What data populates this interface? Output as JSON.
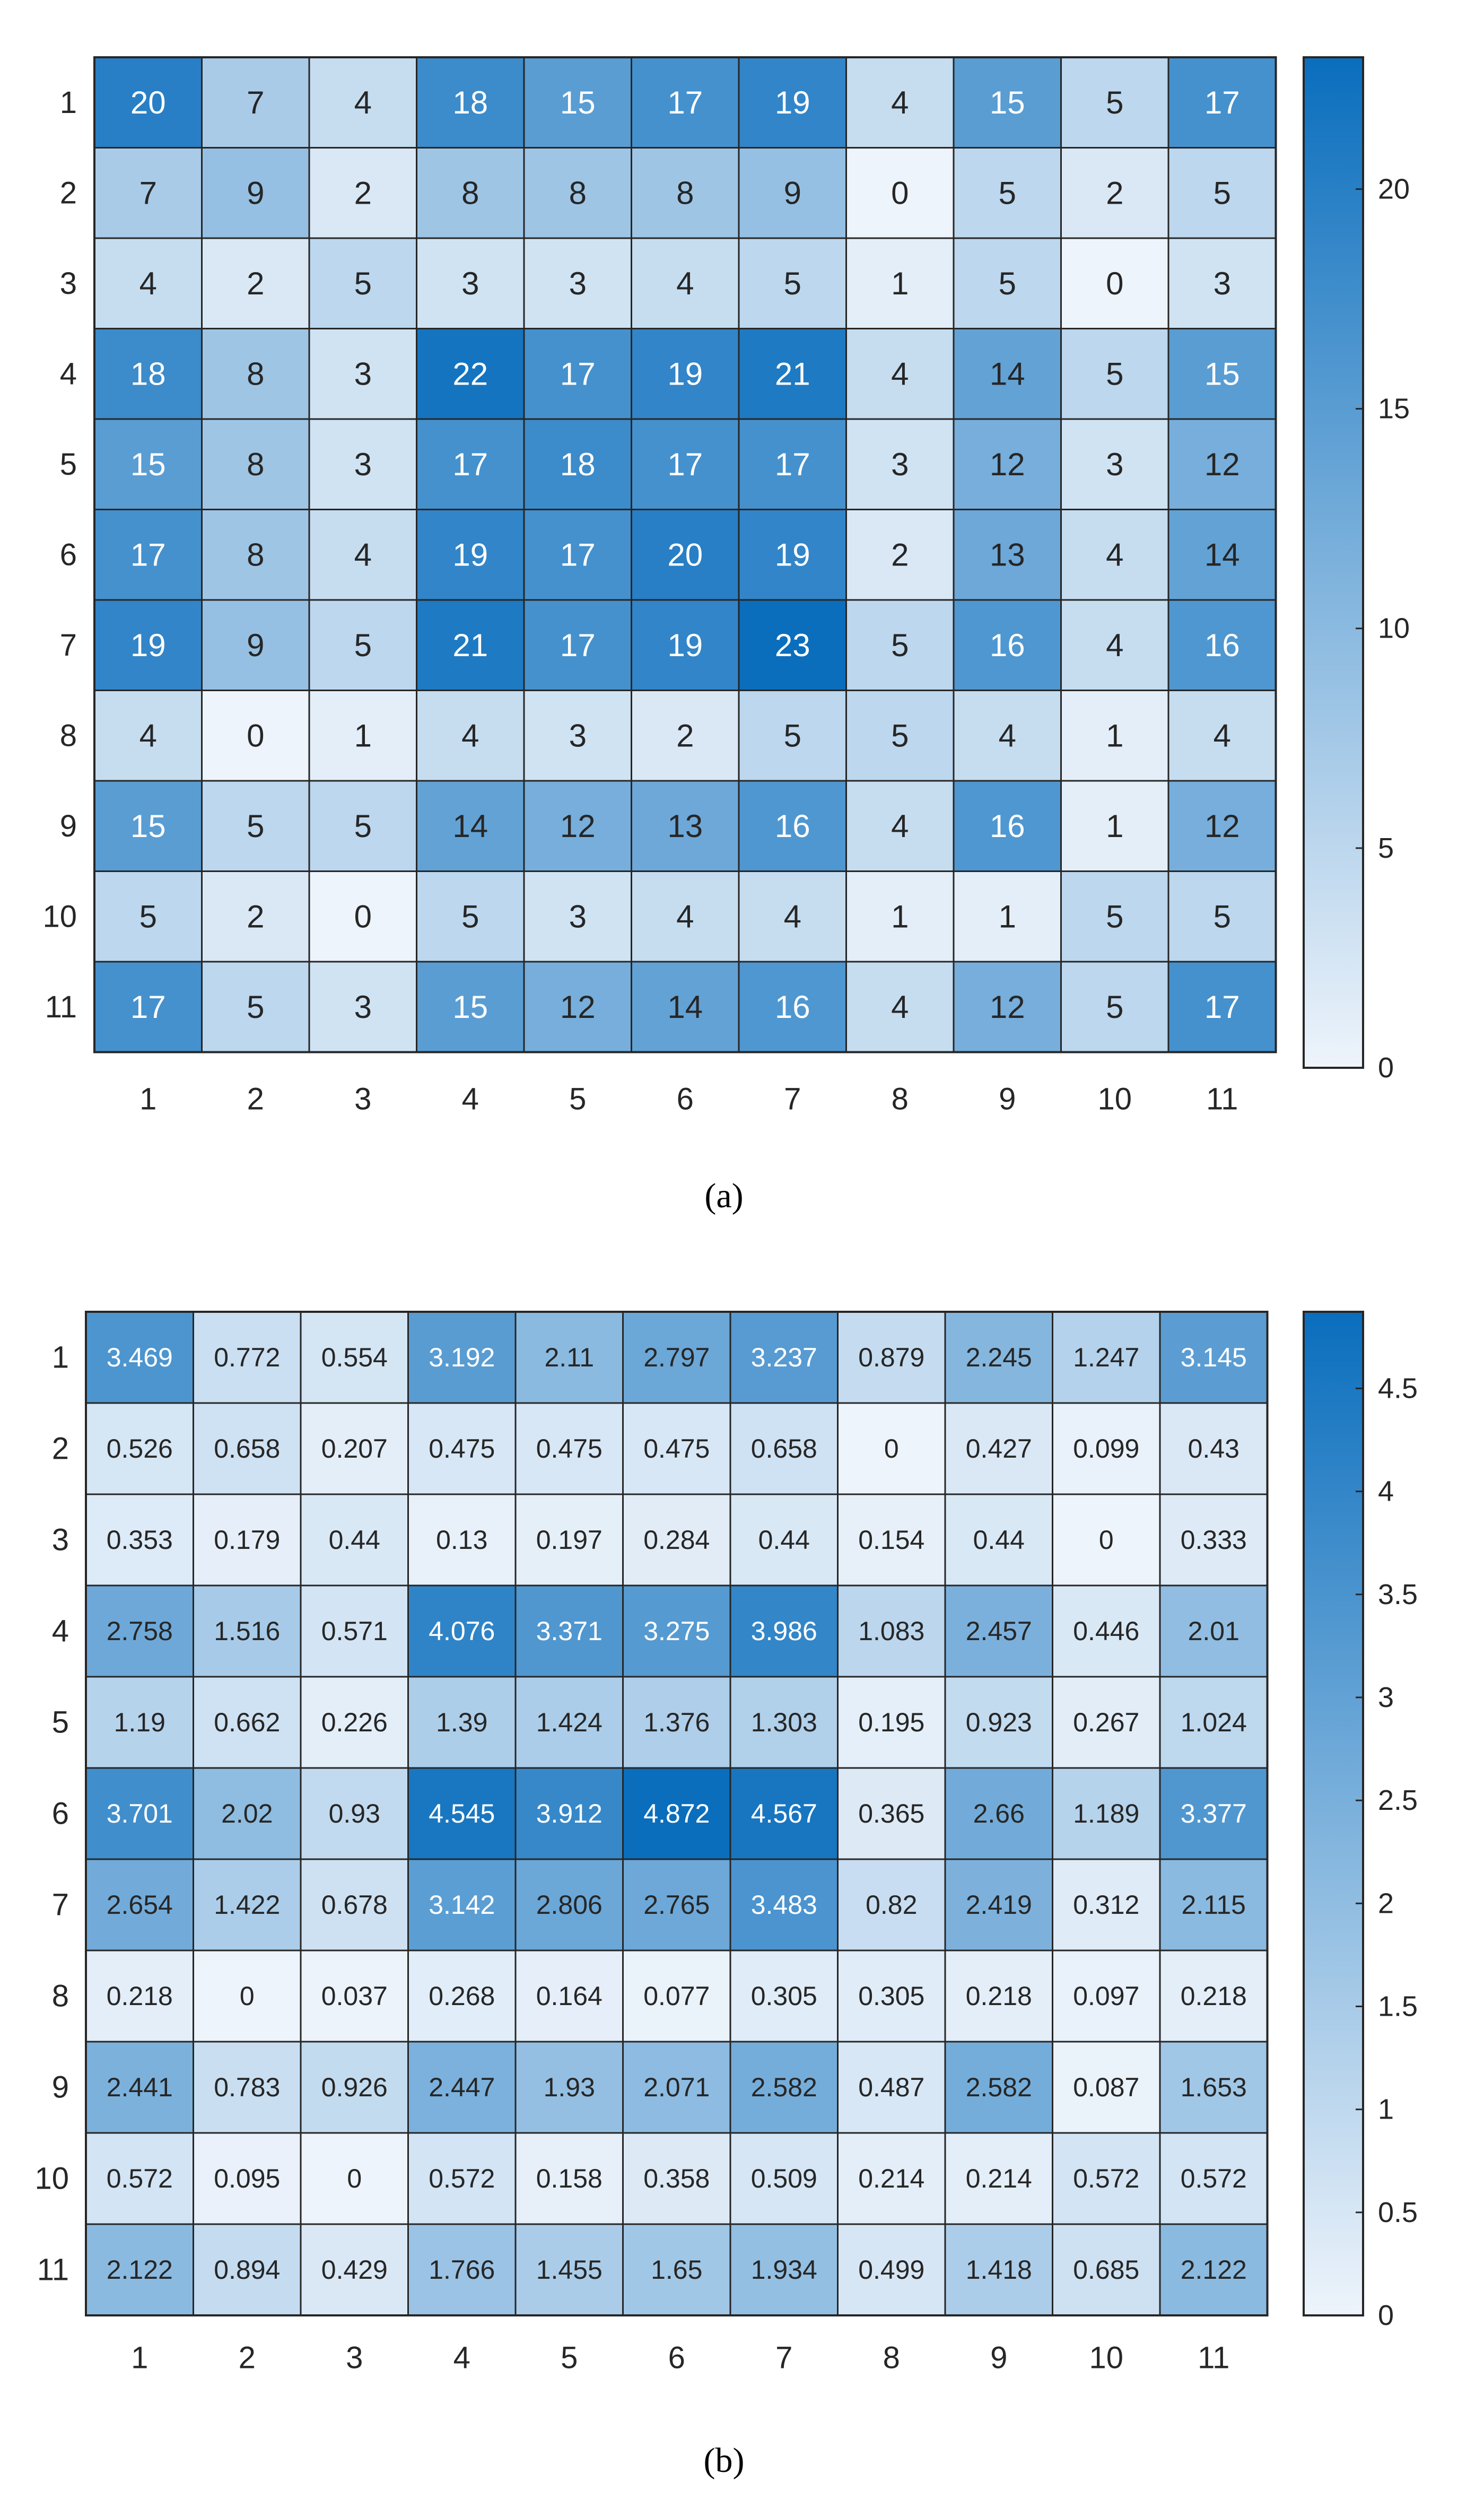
{
  "chart_data": [
    {
      "type": "heatmap",
      "caption": "(a)",
      "x_labels": [
        "1",
        "2",
        "3",
        "4",
        "5",
        "6",
        "7",
        "8",
        "9",
        "10",
        "11"
      ],
      "y_labels": [
        "1",
        "2",
        "3",
        "4",
        "5",
        "6",
        "7",
        "8",
        "9",
        "10",
        "11"
      ],
      "values": [
        [
          20,
          7,
          4,
          18,
          15,
          17,
          19,
          4,
          15,
          5,
          17
        ],
        [
          7,
          9,
          2,
          8,
          8,
          8,
          9,
          0,
          5,
          2,
          5
        ],
        [
          4,
          2,
          5,
          3,
          3,
          4,
          5,
          1,
          5,
          0,
          3
        ],
        [
          18,
          8,
          3,
          22,
          17,
          19,
          21,
          4,
          14,
          5,
          15
        ],
        [
          15,
          8,
          3,
          17,
          18,
          17,
          17,
          3,
          12,
          3,
          12
        ],
        [
          17,
          8,
          4,
          19,
          17,
          20,
          19,
          2,
          13,
          4,
          14
        ],
        [
          19,
          9,
          5,
          21,
          17,
          19,
          23,
          5,
          16,
          4,
          16
        ],
        [
          4,
          0,
          1,
          4,
          3,
          2,
          5,
          5,
          4,
          1,
          4
        ],
        [
          15,
          5,
          5,
          14,
          12,
          13,
          16,
          4,
          16,
          1,
          12
        ],
        [
          5,
          2,
          0,
          5,
          3,
          4,
          4,
          1,
          1,
          5,
          5
        ],
        [
          17,
          5,
          3,
          15,
          12,
          14,
          16,
          4,
          12,
          5,
          17
        ]
      ],
      "colorbar": {
        "range": [
          0,
          23
        ],
        "ticks": [
          0,
          5,
          10,
          15,
          20
        ],
        "tick_labels": [
          "0",
          "5",
          "10",
          "15",
          "20"
        ]
      },
      "grid": true,
      "legend": "colorbar-right"
    },
    {
      "type": "heatmap",
      "caption": "(b)",
      "x_labels": [
        "1",
        "2",
        "3",
        "4",
        "5",
        "6",
        "7",
        "8",
        "9",
        "10",
        "11"
      ],
      "y_labels": [
        "1",
        "2",
        "3",
        "4",
        "5",
        "6",
        "7",
        "8",
        "9",
        "10",
        "11"
      ],
      "values": [
        [
          "3.469",
          "0.772",
          "0.554",
          "3.192",
          "2.11",
          "2.797",
          "3.237",
          "0.879",
          "2.245",
          "1.247",
          "3.145"
        ],
        [
          "0.526",
          "0.658",
          "0.207",
          "0.475",
          "0.475",
          "0.475",
          "0.658",
          "0",
          "0.427",
          "0.099",
          "0.43"
        ],
        [
          "0.353",
          "0.179",
          "0.44",
          "0.13",
          "0.197",
          "0.284",
          "0.44",
          "0.154",
          "0.44",
          "0",
          "0.333"
        ],
        [
          "2.758",
          "1.516",
          "0.571",
          "4.076",
          "3.371",
          "3.275",
          "3.986",
          "1.083",
          "2.457",
          "0.446",
          "2.01"
        ],
        [
          "1.19",
          "0.662",
          "0.226",
          "1.39",
          "1.424",
          "1.376",
          "1.303",
          "0.195",
          "0.923",
          "0.267",
          "1.024"
        ],
        [
          "3.701",
          "2.02",
          "0.93",
          "4.545",
          "3.912",
          "4.872",
          "4.567",
          "0.365",
          "2.66",
          "1.189",
          "3.377"
        ],
        [
          "2.654",
          "1.422",
          "0.678",
          "3.142",
          "2.806",
          "2.765",
          "3.483",
          "0.82",
          "2.419",
          "0.312",
          "2.115"
        ],
        [
          "0.218",
          "0",
          "0.037",
          "0.268",
          "0.164",
          "0.077",
          "0.305",
          "0.305",
          "0.218",
          "0.097",
          "0.218"
        ],
        [
          "2.441",
          "0.783",
          "0.926",
          "2.447",
          "1.93",
          "2.071",
          "2.582",
          "0.487",
          "2.582",
          "0.087",
          "1.653"
        ],
        [
          "0.572",
          "0.095",
          "0",
          "0.572",
          "0.158",
          "0.358",
          "0.509",
          "0.214",
          "0.214",
          "0.572",
          "0.572"
        ],
        [
          "2.122",
          "0.894",
          "0.429",
          "1.766",
          "1.455",
          "1.65",
          "1.934",
          "0.499",
          "1.418",
          "0.685",
          "2.122"
        ]
      ],
      "colorbar": {
        "range": [
          0,
          4.872
        ],
        "ticks": [
          0,
          0.5,
          1,
          1.5,
          2,
          2.5,
          3,
          3.5,
          4,
          4.5
        ],
        "tick_labels": [
          "0",
          "0.5",
          "1",
          "1.5",
          "2",
          "2.5",
          "3",
          "3.5",
          "4",
          "4.5"
        ]
      },
      "grid": true,
      "legend": "colorbar-right"
    }
  ],
  "colors": {
    "low": "#eef4fb",
    "high": "#0a6ebd",
    "grid_line": "#262626",
    "text_dark": "#262626",
    "text_light": "#ffffff",
    "background": "#ffffff"
  }
}
